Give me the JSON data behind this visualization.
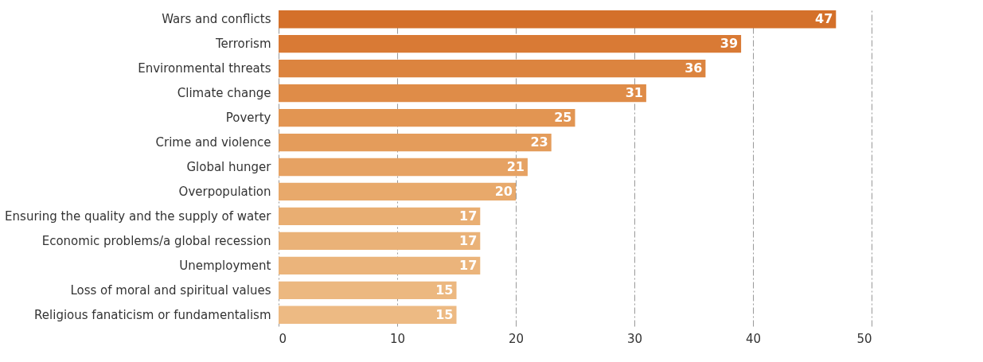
{
  "chart_data": {
    "type": "bar",
    "orientation": "horizontal",
    "categories": [
      "Wars and conflicts",
      "Terrorism",
      "Environmental threats",
      "Climate change",
      "Poverty",
      "Crime and violence",
      "Global hunger",
      "Overpopulation",
      "Ensuring the quality and the supply of water",
      "Economic problems/a global recession",
      "Unemployment",
      "Loss of moral and spiritual values",
      "Religious fanaticism or fundamentalism"
    ],
    "values": [
      47,
      39,
      36,
      31,
      25,
      23,
      21,
      20,
      17,
      17,
      17,
      15,
      15
    ],
    "colors": [
      "#d4702a",
      "#d97a35",
      "#dc843f",
      "#df8c48",
      "#e29552",
      "#e49c5b",
      "#e6a263",
      "#e8a96b",
      "#e9ae72",
      "#eab278",
      "#ebb47b",
      "#ecb880",
      "#edba83"
    ],
    "xlim": [
      0,
      50
    ],
    "xticks": [
      0,
      10,
      20,
      30,
      40,
      50
    ],
    "grid": "x",
    "data_labels": true
  }
}
